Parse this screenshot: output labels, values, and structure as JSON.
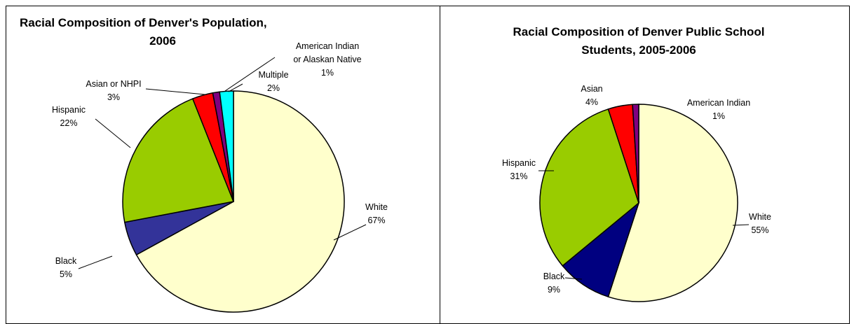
{
  "chart_data": [
    {
      "type": "pie",
      "title_lines": [
        "Racial Composition of Denver's Population,",
        "2006"
      ],
      "slices": [
        {
          "label_lines": [
            "White"
          ],
          "pct_label": "67%",
          "value": 67,
          "color": "#FFFFCC"
        },
        {
          "label_lines": [
            "Black"
          ],
          "pct_label": "5%",
          "value": 5,
          "color": "#333399"
        },
        {
          "label_lines": [
            "Hispanic"
          ],
          "pct_label": "22%",
          "value": 22,
          "color": "#99CC00"
        },
        {
          "label_lines": [
            "Asian or NHPI"
          ],
          "pct_label": "3%",
          "value": 3,
          "color": "#FF0000"
        },
        {
          "label_lines": [
            "American Indian",
            "or Alaskan Native"
          ],
          "pct_label": "1%",
          "value": 1,
          "color": "#800080"
        },
        {
          "label_lines": [
            "Multiple"
          ],
          "pct_label": "2%",
          "value": 2,
          "color": "#00FFFF"
        }
      ]
    },
    {
      "type": "pie",
      "title_lines": [
        "Racial Composition of Denver Public School",
        "Students, 2005-2006"
      ],
      "slices": [
        {
          "label_lines": [
            "White"
          ],
          "pct_label": "55%",
          "value": 55,
          "color": "#FFFFCC"
        },
        {
          "label_lines": [
            "Black"
          ],
          "pct_label": "9%",
          "value": 9,
          "color": "#000080"
        },
        {
          "label_lines": [
            "Hispanic"
          ],
          "pct_label": "31%",
          "value": 31,
          "color": "#99CC00"
        },
        {
          "label_lines": [
            "Asian"
          ],
          "pct_label": "4%",
          "value": 4,
          "color": "#FF0000"
        },
        {
          "label_lines": [
            "American Indian"
          ],
          "pct_label": "1%",
          "value": 1,
          "color": "#800080"
        }
      ]
    }
  ]
}
